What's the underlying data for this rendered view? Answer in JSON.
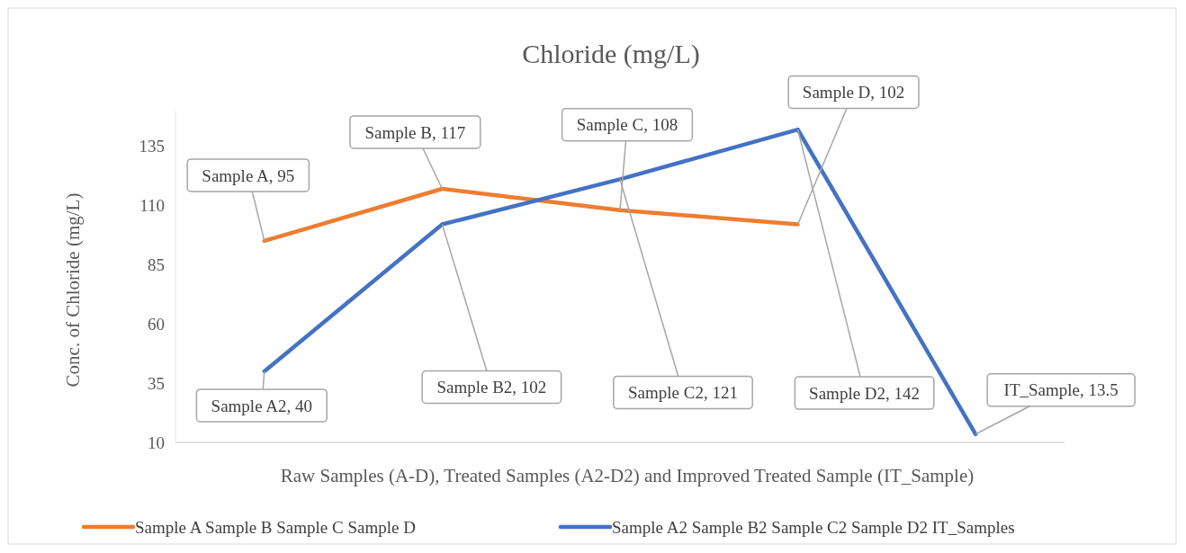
{
  "chart_data": {
    "type": "line",
    "title": "Chloride (mg/L)",
    "xlabel": "Raw Samples (A-D), Treated Samples (A2-D2) and Improved Treated Sample (IT_Sample)",
    "ylabel": "Conc. of Chloride (mg/L)",
    "categories": [
      null,
      null,
      null,
      null,
      null
    ],
    "series": [
      {
        "name": "Sample A Sample B Sample C Sample D",
        "color": "#ed7d31",
        "values": [
          95,
          117,
          108,
          102,
          null
        ],
        "value_labels": [
          "Sample A, 95",
          "Sample B, 117",
          "Sample C, 108",
          "Sample D, 102",
          null
        ]
      },
      {
        "name": "Sample A2 Sample B2 Sample C2 Sample D2 IT_Samples",
        "color": "#4472c4",
        "values": [
          40,
          102,
          121,
          142,
          13.5
        ],
        "value_labels": [
          "Sample A2, 40",
          "Sample B2, 102",
          "Sample C2, 121",
          "Sample D2, 142",
          "IT_Sample, 13.5"
        ]
      }
    ],
    "ylim": [
      10,
      150
    ],
    "yticks": [
      10,
      35,
      60,
      85,
      110,
      135
    ],
    "grid": false,
    "legend": "bottom",
    "marker": "none",
    "line_style": "solid"
  }
}
